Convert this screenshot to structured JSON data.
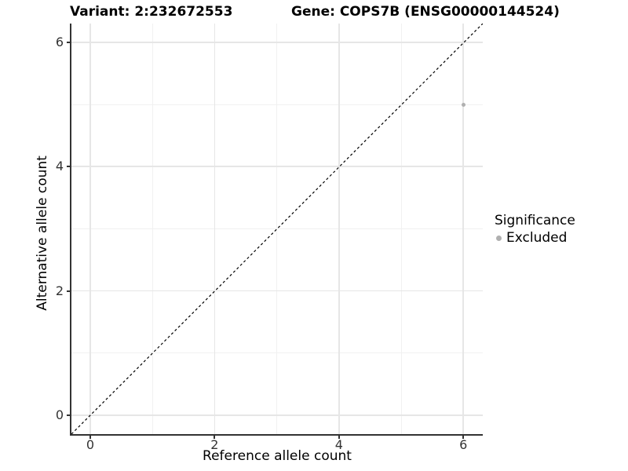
{
  "header": {
    "variant_title": "Variant: 2:232672553",
    "gene_title": "Gene: COPS7B (ENSG00000144524)"
  },
  "axes": {
    "x_label": "Reference allele count",
    "y_label": "Alternative allele count"
  },
  "legend": {
    "title": "Significance",
    "items": [
      {
        "label": "Excluded",
        "color": "#b0b0b0"
      }
    ]
  },
  "chart_data": {
    "type": "scatter",
    "title": "Variant: 2:232672553 | Gene: COPS7B (ENSG00000144524)",
    "xlabel": "Reference allele count",
    "ylabel": "Alternative allele count",
    "xlim": [
      -0.3,
      6.3
    ],
    "ylim": [
      -0.3,
      6.3
    ],
    "x_ticks": [
      0,
      2,
      4,
      6
    ],
    "y_ticks": [
      0,
      2,
      4,
      6
    ],
    "x_minor_ticks": [
      1,
      3,
      5
    ],
    "y_minor_ticks": [
      1,
      3,
      5
    ],
    "grid": "major and minor gridlines, light grey on white",
    "legend_position": "right-middle",
    "series": [
      {
        "name": "Excluded",
        "color": "#b0b0b0",
        "marker": "circle",
        "points": [
          {
            "x": 6,
            "y": 5
          }
        ]
      }
    ],
    "reference_line": {
      "type": "identity y=x",
      "style": "dashed",
      "color": "#000000",
      "from": [
        -0.3,
        -0.3
      ],
      "to": [
        6.3,
        6.3
      ]
    }
  },
  "colors": {
    "background": "#ffffff",
    "axis_line": "#333333",
    "tick_text": "#333333",
    "grid_major": "#e6e6e6",
    "grid_minor": "#f1f1f1",
    "point": "#b0b0b0"
  }
}
